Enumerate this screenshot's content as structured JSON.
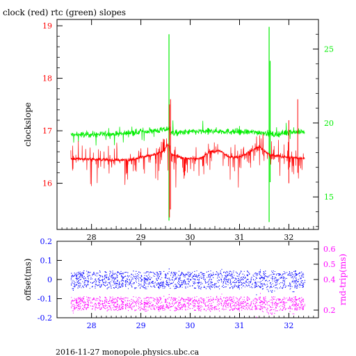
{
  "colors": {
    "clock": "#ff0000",
    "rtc": "#00ee00",
    "offset": "#0000ff",
    "rndtrip": "#ff00ff",
    "axis": "#000000"
  },
  "footer": "2016-11-27  monopole.physics.ubc.ca",
  "chart_data": [
    {
      "type": "line",
      "title": "clock (red) rtc (green) slopes",
      "ylabel": "clockslope",
      "x_ticks": [
        "28",
        "29",
        "30",
        "31",
        "32"
      ],
      "xlim": [
        27.3,
        32.6
      ],
      "ylim_left": [
        15.12,
        19.12
      ],
      "y_ticks_left": [
        "16",
        "17",
        "18",
        "19"
      ],
      "ylim_right": [
        12.8,
        27
      ],
      "y_ticks_right": [
        "15",
        "20",
        "25"
      ],
      "series": [
        {
          "name": "clock",
          "axis": "left",
          "baseline": [
            [
              27.58,
              16.47
            ],
            [
              28.0,
              16.46
            ],
            [
              28.5,
              16.44
            ],
            [
              28.8,
              16.45
            ],
            [
              29.0,
              16.5
            ],
            [
              29.3,
              16.55
            ],
            [
              29.45,
              16.6
            ],
            [
              29.55,
              16.75
            ],
            [
              29.62,
              16.55
            ],
            [
              29.9,
              16.47
            ],
            [
              30.2,
              16.47
            ],
            [
              30.4,
              16.6
            ],
            [
              30.6,
              16.62
            ],
            [
              30.8,
              16.5
            ],
            [
              31.0,
              16.5
            ],
            [
              31.2,
              16.6
            ],
            [
              31.4,
              16.7
            ],
            [
              31.6,
              16.55
            ],
            [
              31.9,
              16.5
            ],
            [
              32.32,
              16.47
            ]
          ],
          "spike_range": [
            15.3,
            17.6
          ]
        },
        {
          "name": "rtc",
          "axis": "right",
          "baseline": [
            [
              27.58,
              19.2
            ],
            [
              28.5,
              19.25
            ],
            [
              29.0,
              19.4
            ],
            [
              29.4,
              19.5
            ],
            [
              29.55,
              19.6
            ],
            [
              29.65,
              19.3
            ],
            [
              30.0,
              19.4
            ],
            [
              30.5,
              19.45
            ],
            [
              31.0,
              19.4
            ],
            [
              31.5,
              19.35
            ],
            [
              31.7,
              19.2
            ],
            [
              32.0,
              19.4
            ],
            [
              32.32,
              19.4
            ]
          ],
          "spike_range": [
            13.3,
            26.5
          ]
        }
      ]
    },
    {
      "type": "scatter",
      "ylabel": "offset(ms)",
      "y2label": "rnd-trip(ms)",
      "x_ticks": [
        "28",
        "29",
        "30",
        "31",
        "32"
      ],
      "xlim": [
        27.3,
        32.6
      ],
      "ylim_left": [
        -0.2,
        0.2
      ],
      "y_ticks_left": [
        "0.2",
        "0.1",
        "0",
        "-0.1",
        "-0.2"
      ],
      "ylim_right": [
        0.15,
        0.65
      ],
      "y_ticks_right": [
        "0.6",
        "0.5",
        "0.4",
        "0.2"
      ],
      "series": [
        {
          "name": "offset",
          "axis": "left",
          "center": 0.0,
          "spread": 0.09
        },
        {
          "name": "rnd-trip",
          "axis": "left",
          "center": -0.125,
          "spread": 0.07
        }
      ]
    }
  ]
}
